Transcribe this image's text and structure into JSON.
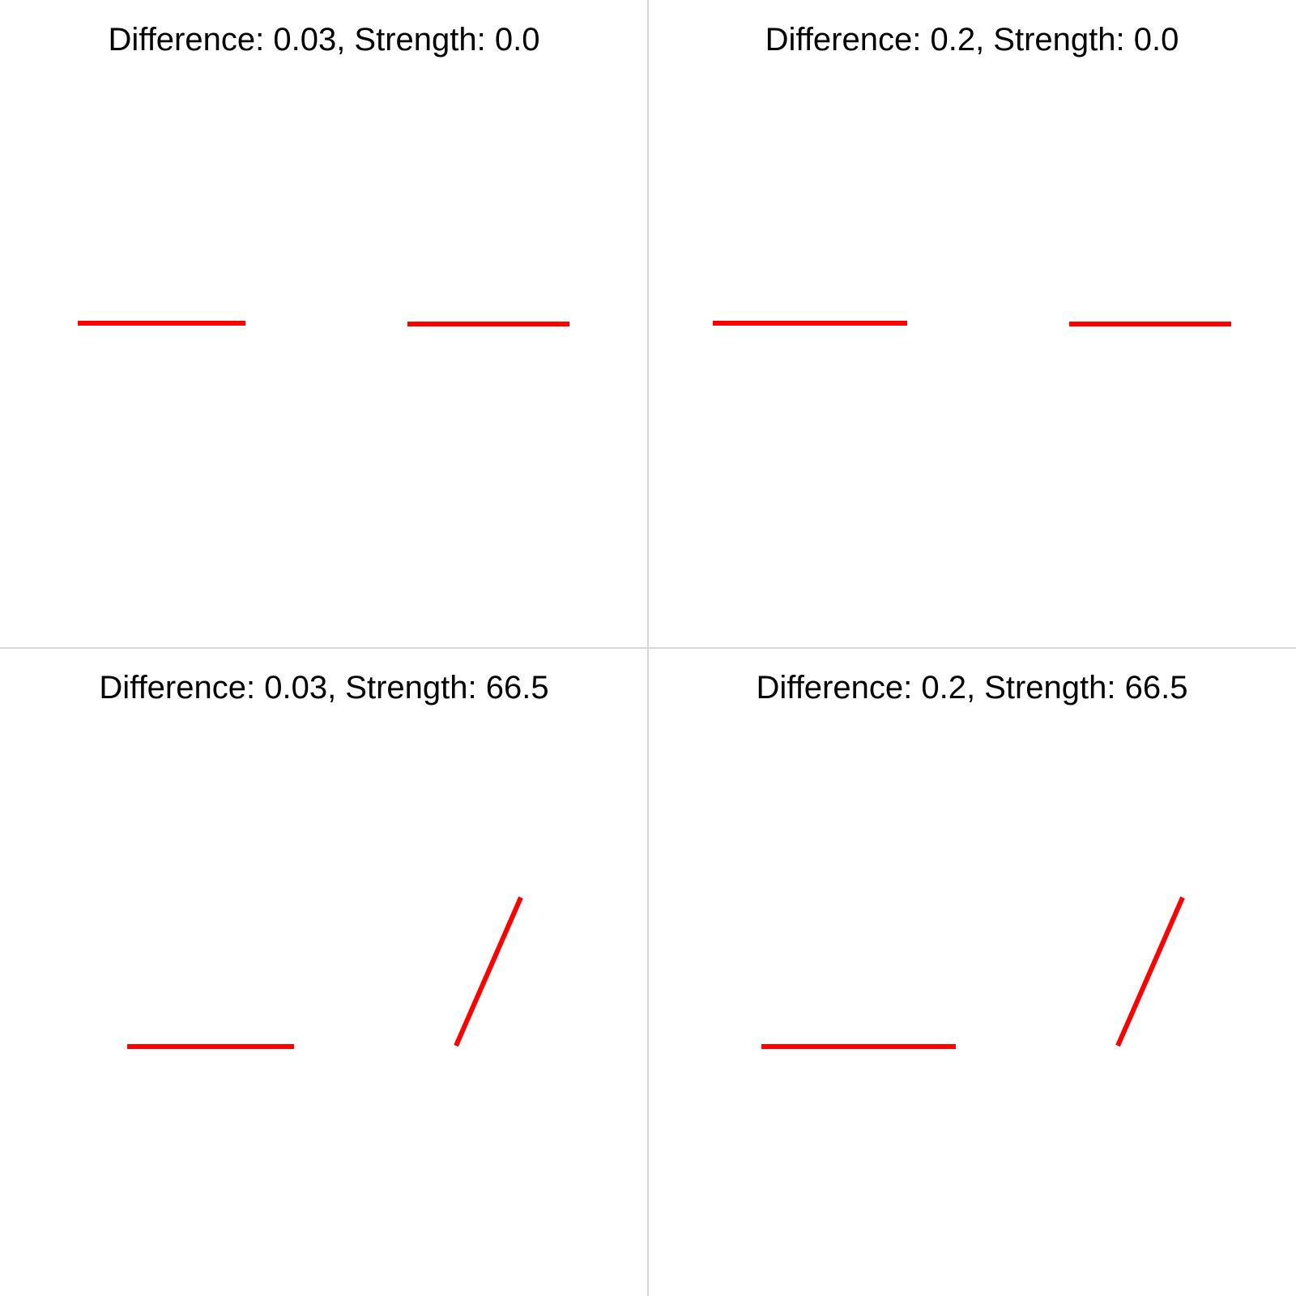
{
  "colors": {
    "background": "#ffffff",
    "line": "#ff0000",
    "divider": "#c0c0c0",
    "text": "#000000"
  },
  "panels": [
    {
      "title": "Difference: 0.03, Strength: 0.0",
      "difference": 0.03,
      "strength": 0.0,
      "segments": [
        {
          "name": "left",
          "orientation": "horizontal"
        },
        {
          "name": "right",
          "orientation": "horizontal"
        }
      ]
    },
    {
      "title": "Difference: 0.2, Strength: 0.0",
      "difference": 0.2,
      "strength": 0.0,
      "segments": [
        {
          "name": "left",
          "orientation": "horizontal"
        },
        {
          "name": "right",
          "orientation": "horizontal"
        }
      ]
    },
    {
      "title": "Difference: 0.03, Strength: 66.5",
      "difference": 0.03,
      "strength": 66.5,
      "segments": [
        {
          "name": "left",
          "orientation": "horizontal"
        },
        {
          "name": "right",
          "orientation": "tilted"
        }
      ]
    },
    {
      "title": "Difference: 0.2, Strength: 66.5",
      "difference": 0.2,
      "strength": 66.5,
      "segments": [
        {
          "name": "left",
          "orientation": "horizontal"
        },
        {
          "name": "right",
          "orientation": "tilted"
        }
      ]
    }
  ]
}
